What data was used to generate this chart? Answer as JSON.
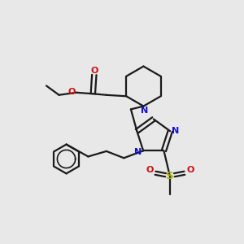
{
  "bg_color": "#e8e8e8",
  "bond_color": "#1a1a1a",
  "nitrogen_color": "#1010cc",
  "oxygen_color": "#cc1010",
  "sulfur_color": "#aaaa00",
  "xlim": [
    0,
    10
  ],
  "ylim": [
    0,
    10
  ],
  "fig_size": [
    3.0,
    3.0
  ],
  "dpi": 100,
  "lw": 1.6,
  "fs": 8.0
}
